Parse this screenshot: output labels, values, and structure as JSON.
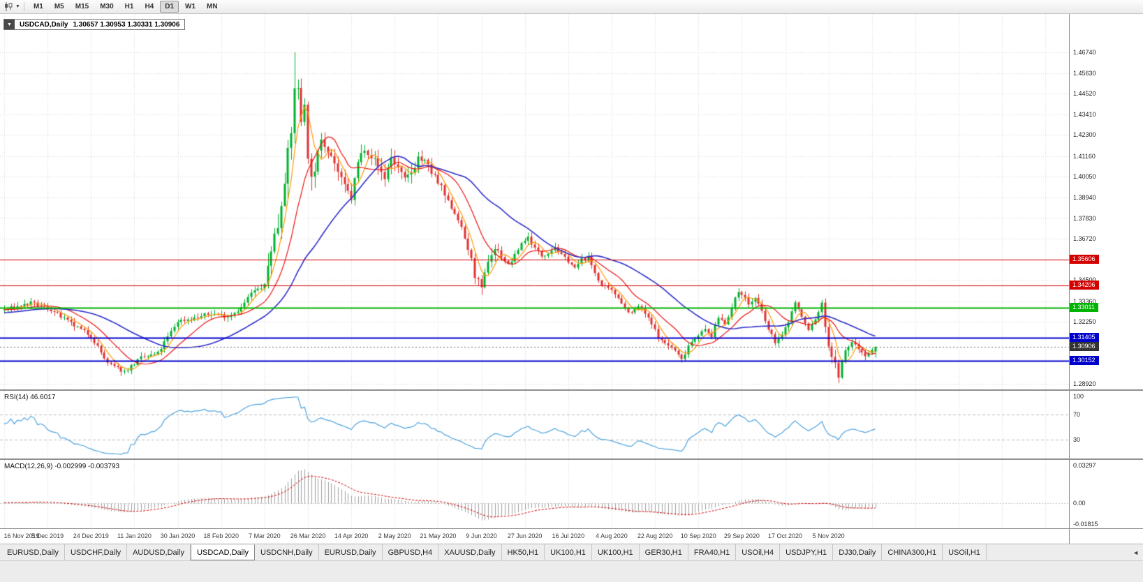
{
  "toolbar": {
    "timeframes": [
      "M1",
      "M5",
      "M15",
      "M30",
      "H1",
      "H4",
      "D1",
      "W1",
      "MN"
    ],
    "active_timeframe": "D1",
    "caret_icon": "▼"
  },
  "chart_header": {
    "symbol_label": "USDCAD,Daily",
    "ohlc": "1.30657 1.30953 1.30331 1.30906",
    "open": "1.30657",
    "high": "1.30953",
    "low": "1.30331",
    "close": "1.30906",
    "collapse_icon": "▼"
  },
  "price_axis": {
    "labels": [
      "1.46740",
      "1.45630",
      "1.44520",
      "1.43410",
      "1.42300",
      "1.41160",
      "1.40050",
      "1.38940",
      "1.37830",
      "1.36720",
      "1.34500",
      "1.33360",
      "1.32250",
      "1.28920"
    ],
    "badges": [
      {
        "value": "1.35606",
        "color": "#d40000",
        "type": "resistance-level"
      },
      {
        "value": "1.34206",
        "color": "#d40000",
        "type": "resistance-level"
      },
      {
        "value": "1.33011",
        "color": "#00b300",
        "type": "pivot-level"
      },
      {
        "value": "1.31405",
        "color": "#0000cd",
        "type": "support-level"
      },
      {
        "value": "1.30906",
        "color": "#333333",
        "type": "current-price"
      },
      {
        "value": "1.30152",
        "color": "#0000cd",
        "type": "support-level"
      }
    ]
  },
  "rsi_panel": {
    "label": "RSI(14) 46.6017",
    "current": 46.6017,
    "levels": [
      "100",
      "70",
      "30"
    ],
    "line_color": "#4da3e0"
  },
  "macd_panel": {
    "label": "MACD(12,26,9) -0.002999 -0.003793",
    "macd": -0.002999,
    "signal": -0.003793,
    "scale": [
      "0.03297",
      "0.00",
      "-0.01815"
    ],
    "histogram_color": "#9f9f9f",
    "signal_color": "#d40000"
  },
  "time_axis": {
    "labels": [
      "16 Nov 2019",
      "5 Dec 2019",
      "24 Dec 2019",
      "11 Jan 2020",
      "30 Jan 2020",
      "18 Feb 2020",
      "7 Mar 2020",
      "26 Mar 2020",
      "14 Apr 2020",
      "2 May 2020",
      "21 May 2020",
      "9 Jun 2020",
      "27 Jun 2020",
      "16 Jul 2020",
      "4 Aug 2020",
      "22 Aug 2020",
      "10 Sep 2020",
      "29 Sep 2020",
      "17 Oct 2020",
      "5 Nov 2020"
    ]
  },
  "tabbar": {
    "tabs": [
      "EURUSD,Daily",
      "USDCHF,Daily",
      "AUDUSD,Daily",
      "USDCAD,Daily",
      "USDCNH,Daily",
      "EURUSD,Daily",
      "GBPUSD,H4",
      "XAUUSD,Daily",
      "HK50,H1",
      "UK100,H1",
      "UK100,H1",
      "GER30,H1",
      "FRA40,H1",
      "USOil,H4",
      "USDJPY,H1",
      "DJ30,Daily",
      "CHINA300,H1",
      "USOil,H1"
    ],
    "active_index": 3,
    "scroll_icon": "◄"
  },
  "chart_data": {
    "type": "candlestick",
    "symbol": "USDCAD",
    "period": "Daily",
    "visible_bars": 262,
    "preroll_bars": 60,
    "bars_per_date_tick": 13,
    "price_range": {
      "top": 1.4674,
      "bottom": 1.2892
    },
    "last_candle": {
      "open": 1.30657,
      "high": 1.30953,
      "low": 1.30331,
      "close": 1.30906
    },
    "spike": {
      "index": 87,
      "high": 1.4674
    },
    "close_anchors": [
      [
        -60,
        1.3305
      ],
      [
        -45,
        1.328
      ],
      [
        -30,
        1.3245
      ],
      [
        -15,
        1.3285
      ],
      [
        0,
        1.329
      ],
      [
        8,
        1.3325
      ],
      [
        14,
        1.329
      ],
      [
        20,
        1.3215
      ],
      [
        26,
        1.315
      ],
      [
        31,
        1.3
      ],
      [
        36,
        1.2958
      ],
      [
        41,
        1.303
      ],
      [
        46,
        1.3055
      ],
      [
        52,
        1.323
      ],
      [
        57,
        1.3245
      ],
      [
        62,
        1.327
      ],
      [
        67,
        1.3255
      ],
      [
        71,
        1.33
      ],
      [
        74,
        1.338
      ],
      [
        78,
        1.342
      ],
      [
        80,
        1.363
      ],
      [
        82,
        1.3745
      ],
      [
        84,
        1.401
      ],
      [
        86,
        1.423
      ],
      [
        87,
        1.45
      ],
      [
        88,
        1.446
      ],
      [
        89,
        1.431
      ],
      [
        90,
        1.443
      ],
      [
        91,
        1.408
      ],
      [
        93,
        1.4
      ],
      [
        95,
        1.423
      ],
      [
        97,
        1.416
      ],
      [
        99,
        1.408
      ],
      [
        101,
        1.398
      ],
      [
        103,
        1.392
      ],
      [
        104,
        1.389
      ],
      [
        106,
        1.408
      ],
      [
        108,
        1.417
      ],
      [
        110,
        1.412
      ],
      [
        112,
        1.406
      ],
      [
        114,
        1.4
      ],
      [
        116,
        1.411
      ],
      [
        118,
        1.405
      ],
      [
        120,
        1.398
      ],
      [
        122,
        1.403
      ],
      [
        124,
        1.411
      ],
      [
        126,
        1.408
      ],
      [
        128,
        1.403
      ],
      [
        130,
        1.397
      ],
      [
        133,
        1.387
      ],
      [
        136,
        1.378
      ],
      [
        139,
        1.362
      ],
      [
        141,
        1.348
      ],
      [
        143,
        1.339
      ],
      [
        145,
        1.356
      ],
      [
        147,
        1.362
      ],
      [
        149,
        1.358
      ],
      [
        151,
        1.353
      ],
      [
        153,
        1.358
      ],
      [
        155,
        1.365
      ],
      [
        157,
        1.368
      ],
      [
        159,
        1.362
      ],
      [
        161,
        1.358
      ],
      [
        163,
        1.36
      ],
      [
        165,
        1.363
      ],
      [
        167,
        1.358
      ],
      [
        169,
        1.3555
      ],
      [
        171,
        1.351
      ],
      [
        173,
        1.356
      ],
      [
        175,
        1.357
      ],
      [
        177,
        1.349
      ],
      [
        179,
        1.342
      ],
      [
        182,
        1.339
      ],
      [
        184,
        1.336
      ],
      [
        186,
        1.33
      ],
      [
        188,
        1.327
      ],
      [
        190,
        1.331
      ],
      [
        192,
        1.327
      ],
      [
        195,
        1.318
      ],
      [
        197,
        1.312
      ],
      [
        199,
        1.31
      ],
      [
        201,
        1.307
      ],
      [
        203,
        1.302
      ],
      [
        205,
        1.31
      ],
      [
        208,
        1.316
      ],
      [
        210,
        1.318
      ],
      [
        212,
        1.315
      ],
      [
        214,
        1.325
      ],
      [
        216,
        1.322
      ],
      [
        218,
        1.33
      ],
      [
        220,
        1.339
      ],
      [
        221,
        1.338
      ],
      [
        223,
        1.332
      ],
      [
        225,
        1.335
      ],
      [
        227,
        1.328
      ],
      [
        229,
        1.318
      ],
      [
        231,
        1.312
      ],
      [
        233,
        1.315
      ],
      [
        235,
        1.323
      ],
      [
        237,
        1.333
      ],
      [
        239,
        1.325
      ],
      [
        241,
        1.318
      ],
      [
        243,
        1.324
      ],
      [
        245,
        1.332
      ],
      [
        247,
        1.31
      ],
      [
        249,
        1.299
      ],
      [
        250,
        1.294
      ],
      [
        252,
        1.306
      ],
      [
        254,
        1.312
      ],
      [
        256,
        1.308
      ],
      [
        258,
        1.305
      ],
      [
        260,
        1.307
      ],
      [
        261,
        1.30906
      ]
    ],
    "volatility": {
      "base": 0.0022,
      "zones": [
        [
          79,
          96,
          0.0085
        ],
        [
          97,
          132,
          0.005
        ],
        [
          139,
          148,
          0.0045
        ],
        [
          246,
          253,
          0.0038
        ]
      ]
    },
    "candle_colors": {
      "up": "#00b22d",
      "down": "#e03131"
    },
    "moving_averages": [
      {
        "period": 5,
        "color": "#ff9900"
      },
      {
        "period": 13,
        "color": "#ee1111"
      },
      {
        "period": 34,
        "color": "#2d2dcb"
      }
    ],
    "levels": [
      {
        "price": 1.35606,
        "color": "#d40000",
        "style": "solid",
        "width": 1
      },
      {
        "price": 1.34206,
        "color": "#d40000",
        "style": "solid",
        "width": 1
      },
      {
        "price": 1.33011,
        "color": "#00b300",
        "style": "solid",
        "width": 2
      },
      {
        "price": 1.31405,
        "color": "#0000cd",
        "style": "solid",
        "width": 2
      },
      {
        "price": 1.30152,
        "color": "#0000cd",
        "style": "solid",
        "width": 2
      },
      {
        "price": 1.30906,
        "color": "#666666",
        "style": "dotted",
        "width": 1,
        "role": "bid-line"
      }
    ],
    "rsi": {
      "period": 14,
      "overbought": 70,
      "oversold": 30
    },
    "macd": {
      "fast": 12,
      "slow": 26,
      "signal": 9
    }
  }
}
